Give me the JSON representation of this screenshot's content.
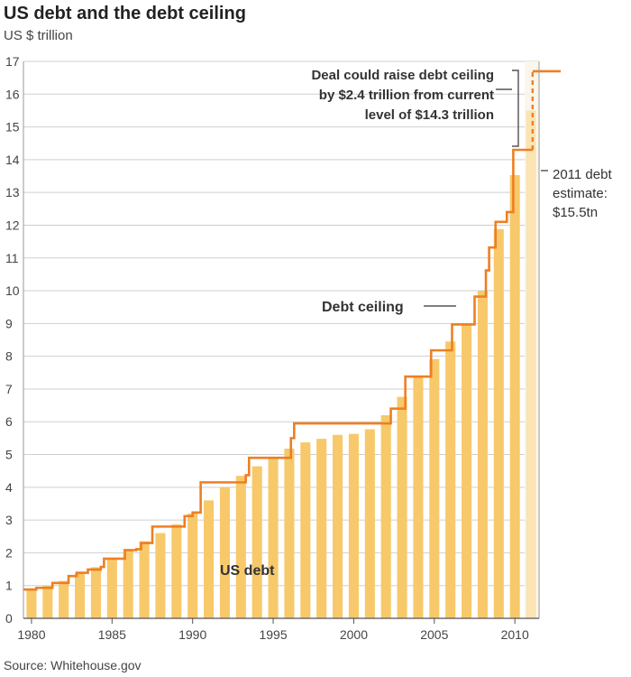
{
  "chart_data": {
    "type": "bar",
    "title": "US debt and the debt ceiling",
    "subtitle": "US $ trillion",
    "source": "Source: Whitehouse.gov",
    "ylim": [
      0,
      17
    ],
    "yticks": [
      "0",
      "1",
      "2",
      "3",
      "4",
      "5",
      "6",
      "7",
      "8",
      "9",
      "10",
      "11",
      "12",
      "13",
      "14",
      "15",
      "16",
      "17"
    ],
    "xlim": [
      1979.5,
      2011.5
    ],
    "xticks": [
      "1980",
      "1985",
      "1990",
      "1995",
      "2000",
      "2005",
      "2010"
    ],
    "grid": true,
    "debt": {
      "name": "US debt",
      "x": [
        1980,
        1981,
        1982,
        1983,
        1984,
        1985,
        1986,
        1987,
        1988,
        1989,
        1990,
        1991,
        1992,
        1993,
        1994,
        1995,
        1996,
        1997,
        1998,
        1999,
        2000,
        2001,
        2002,
        2003,
        2004,
        2005,
        2006,
        2007,
        2008,
        2009,
        2010
      ],
      "values": [
        0.91,
        1.0,
        1.14,
        1.37,
        1.56,
        1.82,
        2.12,
        2.35,
        2.6,
        2.87,
        3.2,
        3.6,
        4.0,
        4.35,
        4.64,
        4.92,
        5.18,
        5.37,
        5.48,
        5.6,
        5.63,
        5.77,
        6.2,
        6.76,
        7.35,
        7.91,
        8.45,
        8.95,
        9.99,
        11.88,
        13.53
      ],
      "color": "#f7c96a"
    },
    "estimate": {
      "x": 2011,
      "value": 15.5,
      "color": "#fbe3b2"
    },
    "ceiling": {
      "name": "Debt ceiling",
      "color": "#ee7f22",
      "steps": [
        [
          1979.5,
          0.88
        ],
        [
          1980.3,
          0.93
        ],
        [
          1981.3,
          1.08
        ],
        [
          1982.3,
          1.29
        ],
        [
          1982.8,
          1.39
        ],
        [
          1983.5,
          1.49
        ],
        [
          1984.3,
          1.57
        ],
        [
          1984.5,
          1.82
        ],
        [
          1985.8,
          2.08
        ],
        [
          1986.5,
          2.11
        ],
        [
          1986.8,
          2.3
        ],
        [
          1987.5,
          2.8
        ],
        [
          1989.5,
          3.12
        ],
        [
          1990.0,
          3.23
        ],
        [
          1990.5,
          4.15
        ],
        [
          1993.3,
          4.37
        ],
        [
          1993.5,
          4.9
        ],
        [
          1996.1,
          5.5
        ],
        [
          1996.3,
          5.95
        ],
        [
          2002.3,
          6.4
        ],
        [
          2003.2,
          7.38
        ],
        [
          2004.8,
          8.18
        ],
        [
          2006.1,
          8.97
        ],
        [
          2007.5,
          9.82
        ],
        [
          2008.2,
          10.62
        ],
        [
          2008.4,
          11.32
        ],
        [
          2008.8,
          12.1
        ],
        [
          2009.5,
          12.4
        ],
        [
          2009.9,
          14.3
        ]
      ],
      "end": 2011.1,
      "proposed_x": 2011.1,
      "proposed_to": 16.7,
      "proposed_end": 2012.2
    },
    "annotations": {
      "deal": [
        "Deal could raise debt ceiling",
        "by $2.4 trillion from current",
        "level of $14.3 trillion"
      ],
      "estimate": [
        "2011 debt",
        "estimate:",
        "$15.5tn"
      ],
      "ceiling_label": "Debt ceiling",
      "debt_label": "US debt"
    }
  }
}
